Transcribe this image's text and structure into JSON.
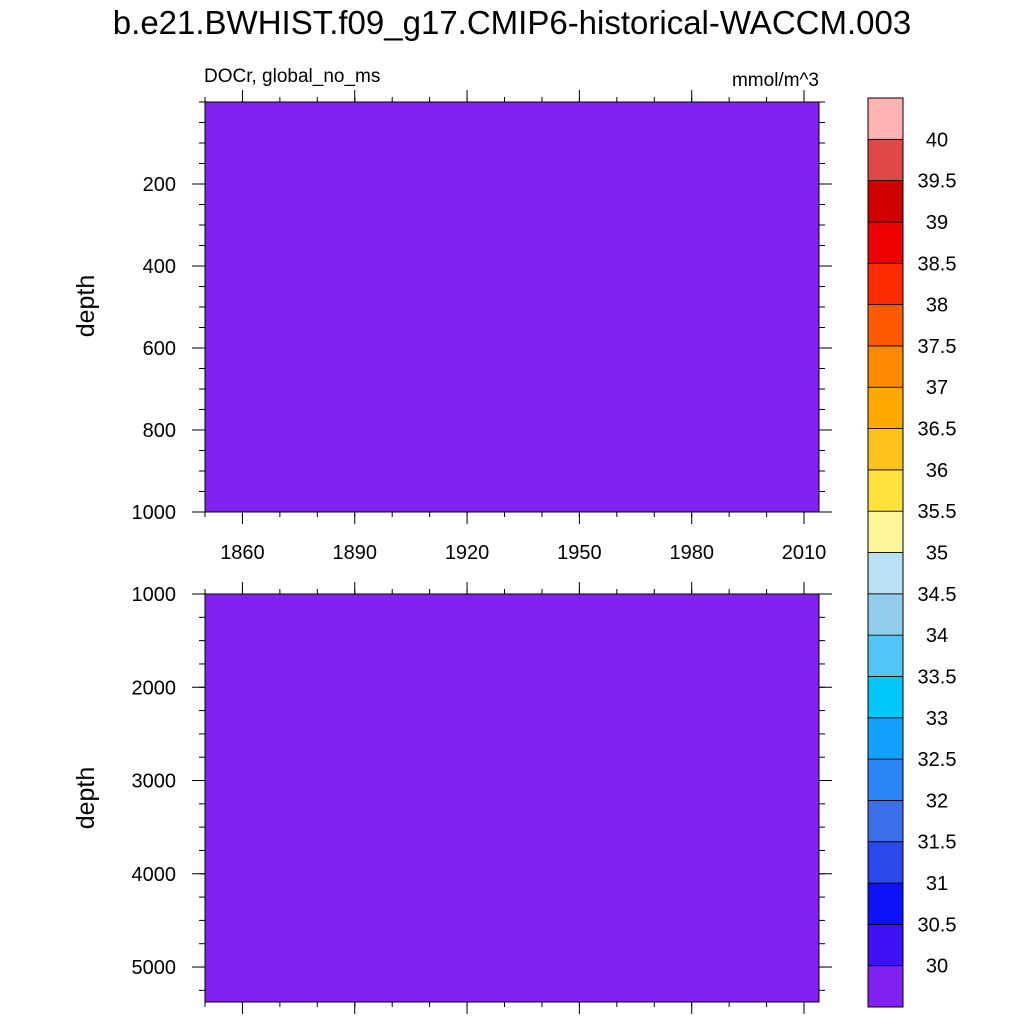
{
  "title": "b.e21.BWHIST.f09_g17.CMIP6-historical-WACCM.003",
  "left_subtitle": "DOCr, global_no_ms",
  "right_subtitle": "mmol/m^3",
  "chart_data": [
    {
      "type": "heatmap",
      "panel": "upper",
      "ylabel": "depth",
      "xlim": [
        1850,
        2014
      ],
      "ylim": [
        0,
        1000
      ],
      "y_inverted": true,
      "y_ticks": [
        200,
        400,
        600,
        800,
        1000
      ],
      "y_tick_labels": [
        "200",
        "400",
        "600",
        "800",
        "1000"
      ],
      "x_ticks": [
        1860,
        1890,
        1920,
        1950,
        1980,
        2010
      ],
      "x_tick_labels": [
        "1860",
        "1890",
        "1920",
        "1950",
        "1980",
        "2010"
      ],
      "fill_value_band": "< 30",
      "fill_color": "#8122f0"
    },
    {
      "type": "heatmap",
      "panel": "lower",
      "ylabel": "depth",
      "xlim": [
        1850,
        2014
      ],
      "ylim": [
        1000,
        5375
      ],
      "y_inverted": true,
      "y_ticks": [
        1000,
        2000,
        3000,
        4000,
        5000
      ],
      "y_tick_labels": [
        "1000",
        "2000",
        "3000",
        "4000",
        "5000"
      ],
      "x_ticks": [
        1860,
        1890,
        1920,
        1950,
        1980,
        2010
      ],
      "fill_value_band": "< 30",
      "fill_color": "#8122f0"
    }
  ],
  "colorbar": {
    "labels": [
      "30",
      "30.5",
      "31",
      "31.5",
      "32",
      "32.5",
      "33",
      "33.5",
      "34",
      "34.5",
      "35",
      "35.5",
      "36",
      "36.5",
      "37",
      "37.5",
      "38",
      "38.5",
      "39",
      "39.5",
      "40"
    ],
    "colors": [
      "#8122f0",
      "#3e12f5",
      "#0d12fb",
      "#2b48ea",
      "#3b6ee8",
      "#2b86f5",
      "#12a2fe",
      "#00c8fd",
      "#52c4f5",
      "#92cdee",
      "#bae0f4",
      "#fff59b",
      "#ffe23d",
      "#ffc21e",
      "#ffaa00",
      "#ff8a00",
      "#ff5a00",
      "#ff2a00",
      "#ec0000",
      "#cf0000",
      "#e04848",
      "#ffb2b2"
    ]
  }
}
